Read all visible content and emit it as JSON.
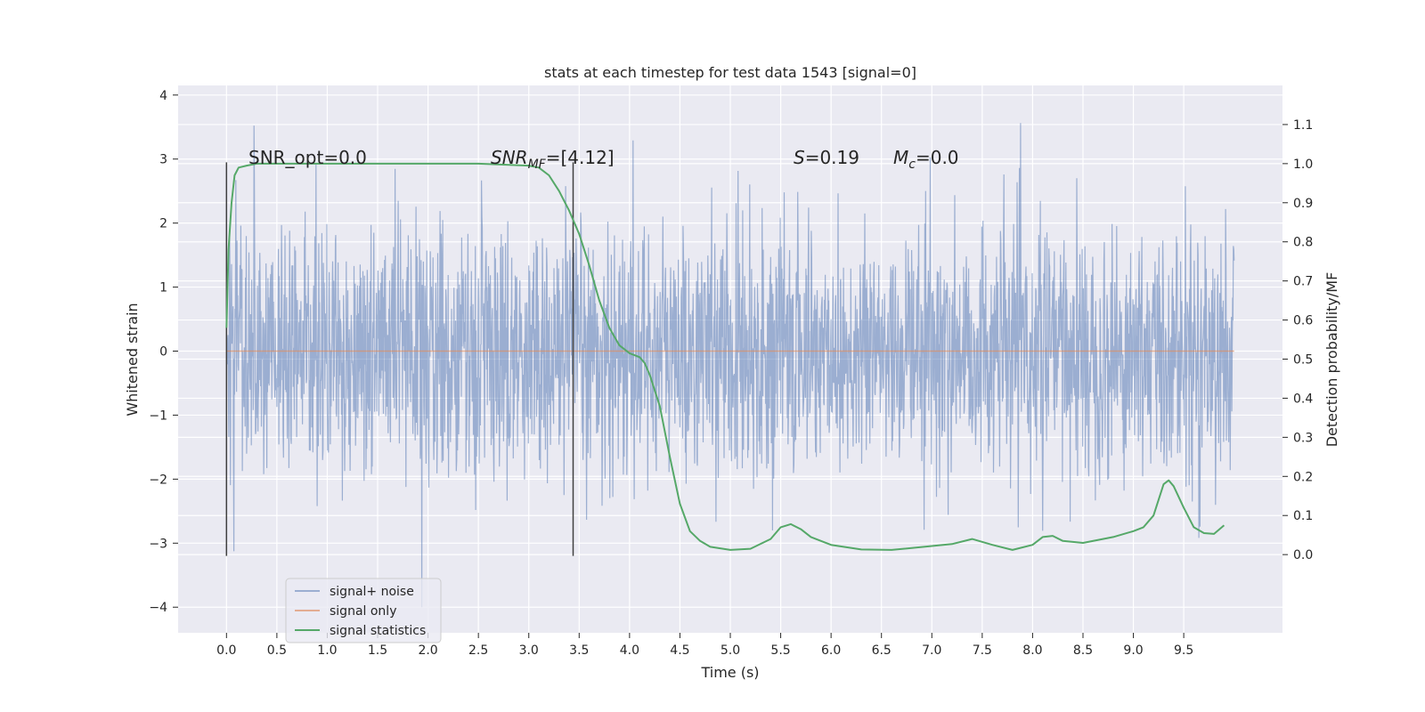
{
  "chart_data": {
    "type": "line",
    "title": "stats at each timestep for test data 1543 [signal=0]",
    "xlabel": "Time (s)",
    "ylabel_left": "Whitened strain",
    "ylabel_right": "Detection probability/MF",
    "xlim": [
      -0.48,
      10.48
    ],
    "ylim_left": [
      -4.4,
      4.15
    ],
    "ylim_right": [
      -0.2,
      1.2
    ],
    "x_ticks": [
      0.0,
      0.5,
      1.0,
      1.5,
      2.0,
      2.5,
      3.0,
      3.5,
      4.0,
      4.5,
      5.0,
      5.5,
      6.0,
      6.5,
      7.0,
      7.5,
      8.0,
      8.5,
      9.0,
      9.5
    ],
    "x_tick_labels": [
      "0.0",
      "0.5",
      "1.0",
      "1.5",
      "2.0",
      "2.5",
      "3.0",
      "3.5",
      "4.0",
      "4.5",
      "5.0",
      "5.5",
      "6.0",
      "6.5",
      "7.0",
      "7.5",
      "8.0",
      "8.5",
      "9.0",
      "9.5"
    ],
    "y_left_ticks": [
      4,
      3,
      2,
      1,
      0,
      -1,
      -2,
      -3,
      -4
    ],
    "y_left_tick_labels": [
      "4",
      "3",
      "2",
      "1",
      "0",
      "−1",
      "−2",
      "−3",
      "−4"
    ],
    "y_right_ticks": [
      1.1,
      1.0,
      0.9,
      0.8,
      0.7,
      0.6,
      0.5,
      0.4,
      0.3,
      0.2,
      0.1,
      0.0
    ],
    "y_right_tick_labels": [
      "1.1",
      "1.0",
      "0.9",
      "0.8",
      "0.7",
      "0.6",
      "0.5",
      "0.4",
      "0.3",
      "0.2",
      "0.1",
      "0.0"
    ],
    "grid": true,
    "legend_position": "bottom-left",
    "series": [
      {
        "name": "signal+ noise",
        "color": "#4c72b0",
        "axis": "left",
        "x_range": [
          0.0,
          10.0
        ],
        "typical_envelope": [
          -1.8,
          1.8
        ],
        "peak_range": [
          -4.0,
          3.8
        ]
      },
      {
        "name": "signal only",
        "color": "#dd8452",
        "axis": "left",
        "x": [
          0.0,
          10.0
        ],
        "values": [
          0.0,
          0.0
        ]
      },
      {
        "name": "signal statistics",
        "color": "#55a868",
        "axis": "right",
        "x": [
          0.0,
          0.02,
          0.05,
          0.08,
          0.12,
          0.2,
          0.3,
          0.5,
          1.0,
          1.5,
          2.0,
          2.5,
          3.0,
          3.1,
          3.2,
          3.3,
          3.4,
          3.5,
          3.6,
          3.7,
          3.8,
          3.9,
          4.0,
          4.1,
          4.15,
          4.2,
          4.3,
          4.4,
          4.5,
          4.6,
          4.7,
          4.8,
          5.0,
          5.2,
          5.4,
          5.5,
          5.6,
          5.7,
          5.8,
          6.0,
          6.3,
          6.6,
          7.0,
          7.2,
          7.4,
          7.6,
          7.8,
          8.0,
          8.1,
          8.2,
          8.3,
          8.5,
          8.8,
          9.0,
          9.1,
          9.2,
          9.3,
          9.35,
          9.4,
          9.5,
          9.6,
          9.7,
          9.8,
          9.9
        ],
        "values": [
          0.58,
          0.78,
          0.9,
          0.97,
          0.99,
          0.995,
          1.0,
          1.0,
          1.0,
          1.0,
          1.0,
          1.0,
          0.995,
          0.99,
          0.97,
          0.93,
          0.88,
          0.82,
          0.74,
          0.65,
          0.58,
          0.535,
          0.515,
          0.505,
          0.49,
          0.46,
          0.38,
          0.25,
          0.13,
          0.06,
          0.035,
          0.02,
          0.012,
          0.015,
          0.04,
          0.07,
          0.078,
          0.065,
          0.045,
          0.025,
          0.013,
          0.012,
          0.022,
          0.027,
          0.04,
          0.025,
          0.012,
          0.025,
          0.045,
          0.048,
          0.035,
          0.03,
          0.045,
          0.06,
          0.07,
          0.1,
          0.18,
          0.19,
          0.175,
          0.12,
          0.07,
          0.055,
          0.053,
          0.075
        ]
      }
    ],
    "vertical_markers": [
      {
        "x": 0.0,
        "color": "#404040"
      },
      {
        "x": 3.44,
        "color": "#404040"
      }
    ],
    "annotations": {
      "snr_opt": "SNR_opt=0.0",
      "snr_mf_main": "SNR",
      "snr_mf_sub": "MF",
      "snr_mf_value": "=[4.12]",
      "s_main": "S",
      "s_value": "=0.19",
      "mc_main": "M",
      "mc_sub": "c",
      "mc_value": "=0.0"
    }
  }
}
